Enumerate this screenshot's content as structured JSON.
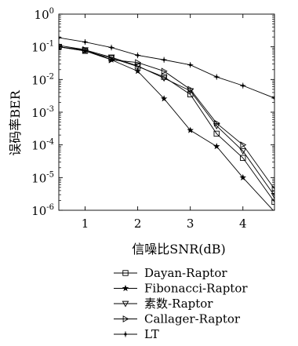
{
  "chart_data": {
    "type": "line",
    "xlabel": "信噪比SNR(dB)",
    "ylabel": "误码率BER",
    "x_ticks": [
      "1",
      "2",
      "3",
      "4"
    ],
    "y_tick_base": "10",
    "y_tick_exponents": [
      "0",
      "-1",
      "-2",
      "-3",
      "-4",
      "-5",
      "-6"
    ],
    "xlim": [
      0.5,
      4.6
    ],
    "ylim": [
      1e-06,
      1
    ],
    "yscale": "log",
    "grid": false,
    "legend_position": "bottom",
    "series": [
      {
        "name": "Dayan-Raptor",
        "marker": "square",
        "x": [
          0.5,
          1.0,
          1.5,
          2.0,
          2.5,
          3.0,
          3.5,
          4.0,
          4.6
        ],
        "y": [
          0.1,
          0.075,
          0.045,
          0.025,
          0.012,
          0.0035,
          0.00022,
          4e-05,
          1.8e-06
        ]
      },
      {
        "name": "Fibonacci-Raptor",
        "marker": "star",
        "x": [
          0.5,
          1.0,
          1.5,
          2.0,
          2.5,
          3.0,
          3.5,
          4.0,
          4.6
        ],
        "y": [
          0.1,
          0.075,
          0.04,
          0.018,
          0.0026,
          0.00028,
          9e-05,
          1e-05,
          9e-07
        ]
      },
      {
        "name": "素数-Raptor",
        "marker": "triangle-down",
        "x": [
          0.5,
          1.0,
          1.5,
          2.0,
          2.5,
          3.0,
          3.5,
          4.0,
          4.6
        ],
        "y": [
          0.1,
          0.08,
          0.048,
          0.026,
          0.011,
          0.0045,
          0.00038,
          6.5e-05,
          2.8e-06
        ]
      },
      {
        "name": "Callager-Raptor",
        "marker": "triangle-right",
        "x": [
          0.5,
          1.0,
          1.5,
          2.0,
          2.5,
          3.0,
          3.5,
          4.0,
          4.6
        ],
        "y": [
          0.11,
          0.082,
          0.04,
          0.033,
          0.018,
          0.005,
          0.00046,
          0.0001,
          4.5e-06
        ]
      },
      {
        "name": "LT",
        "marker": "plus",
        "x": [
          0.5,
          1.0,
          1.5,
          2.0,
          2.5,
          3.0,
          3.5,
          4.0,
          4.6
        ],
        "y": [
          0.19,
          0.14,
          0.095,
          0.055,
          0.04,
          0.028,
          0.012,
          0.0065,
          0.0027
        ]
      }
    ]
  }
}
